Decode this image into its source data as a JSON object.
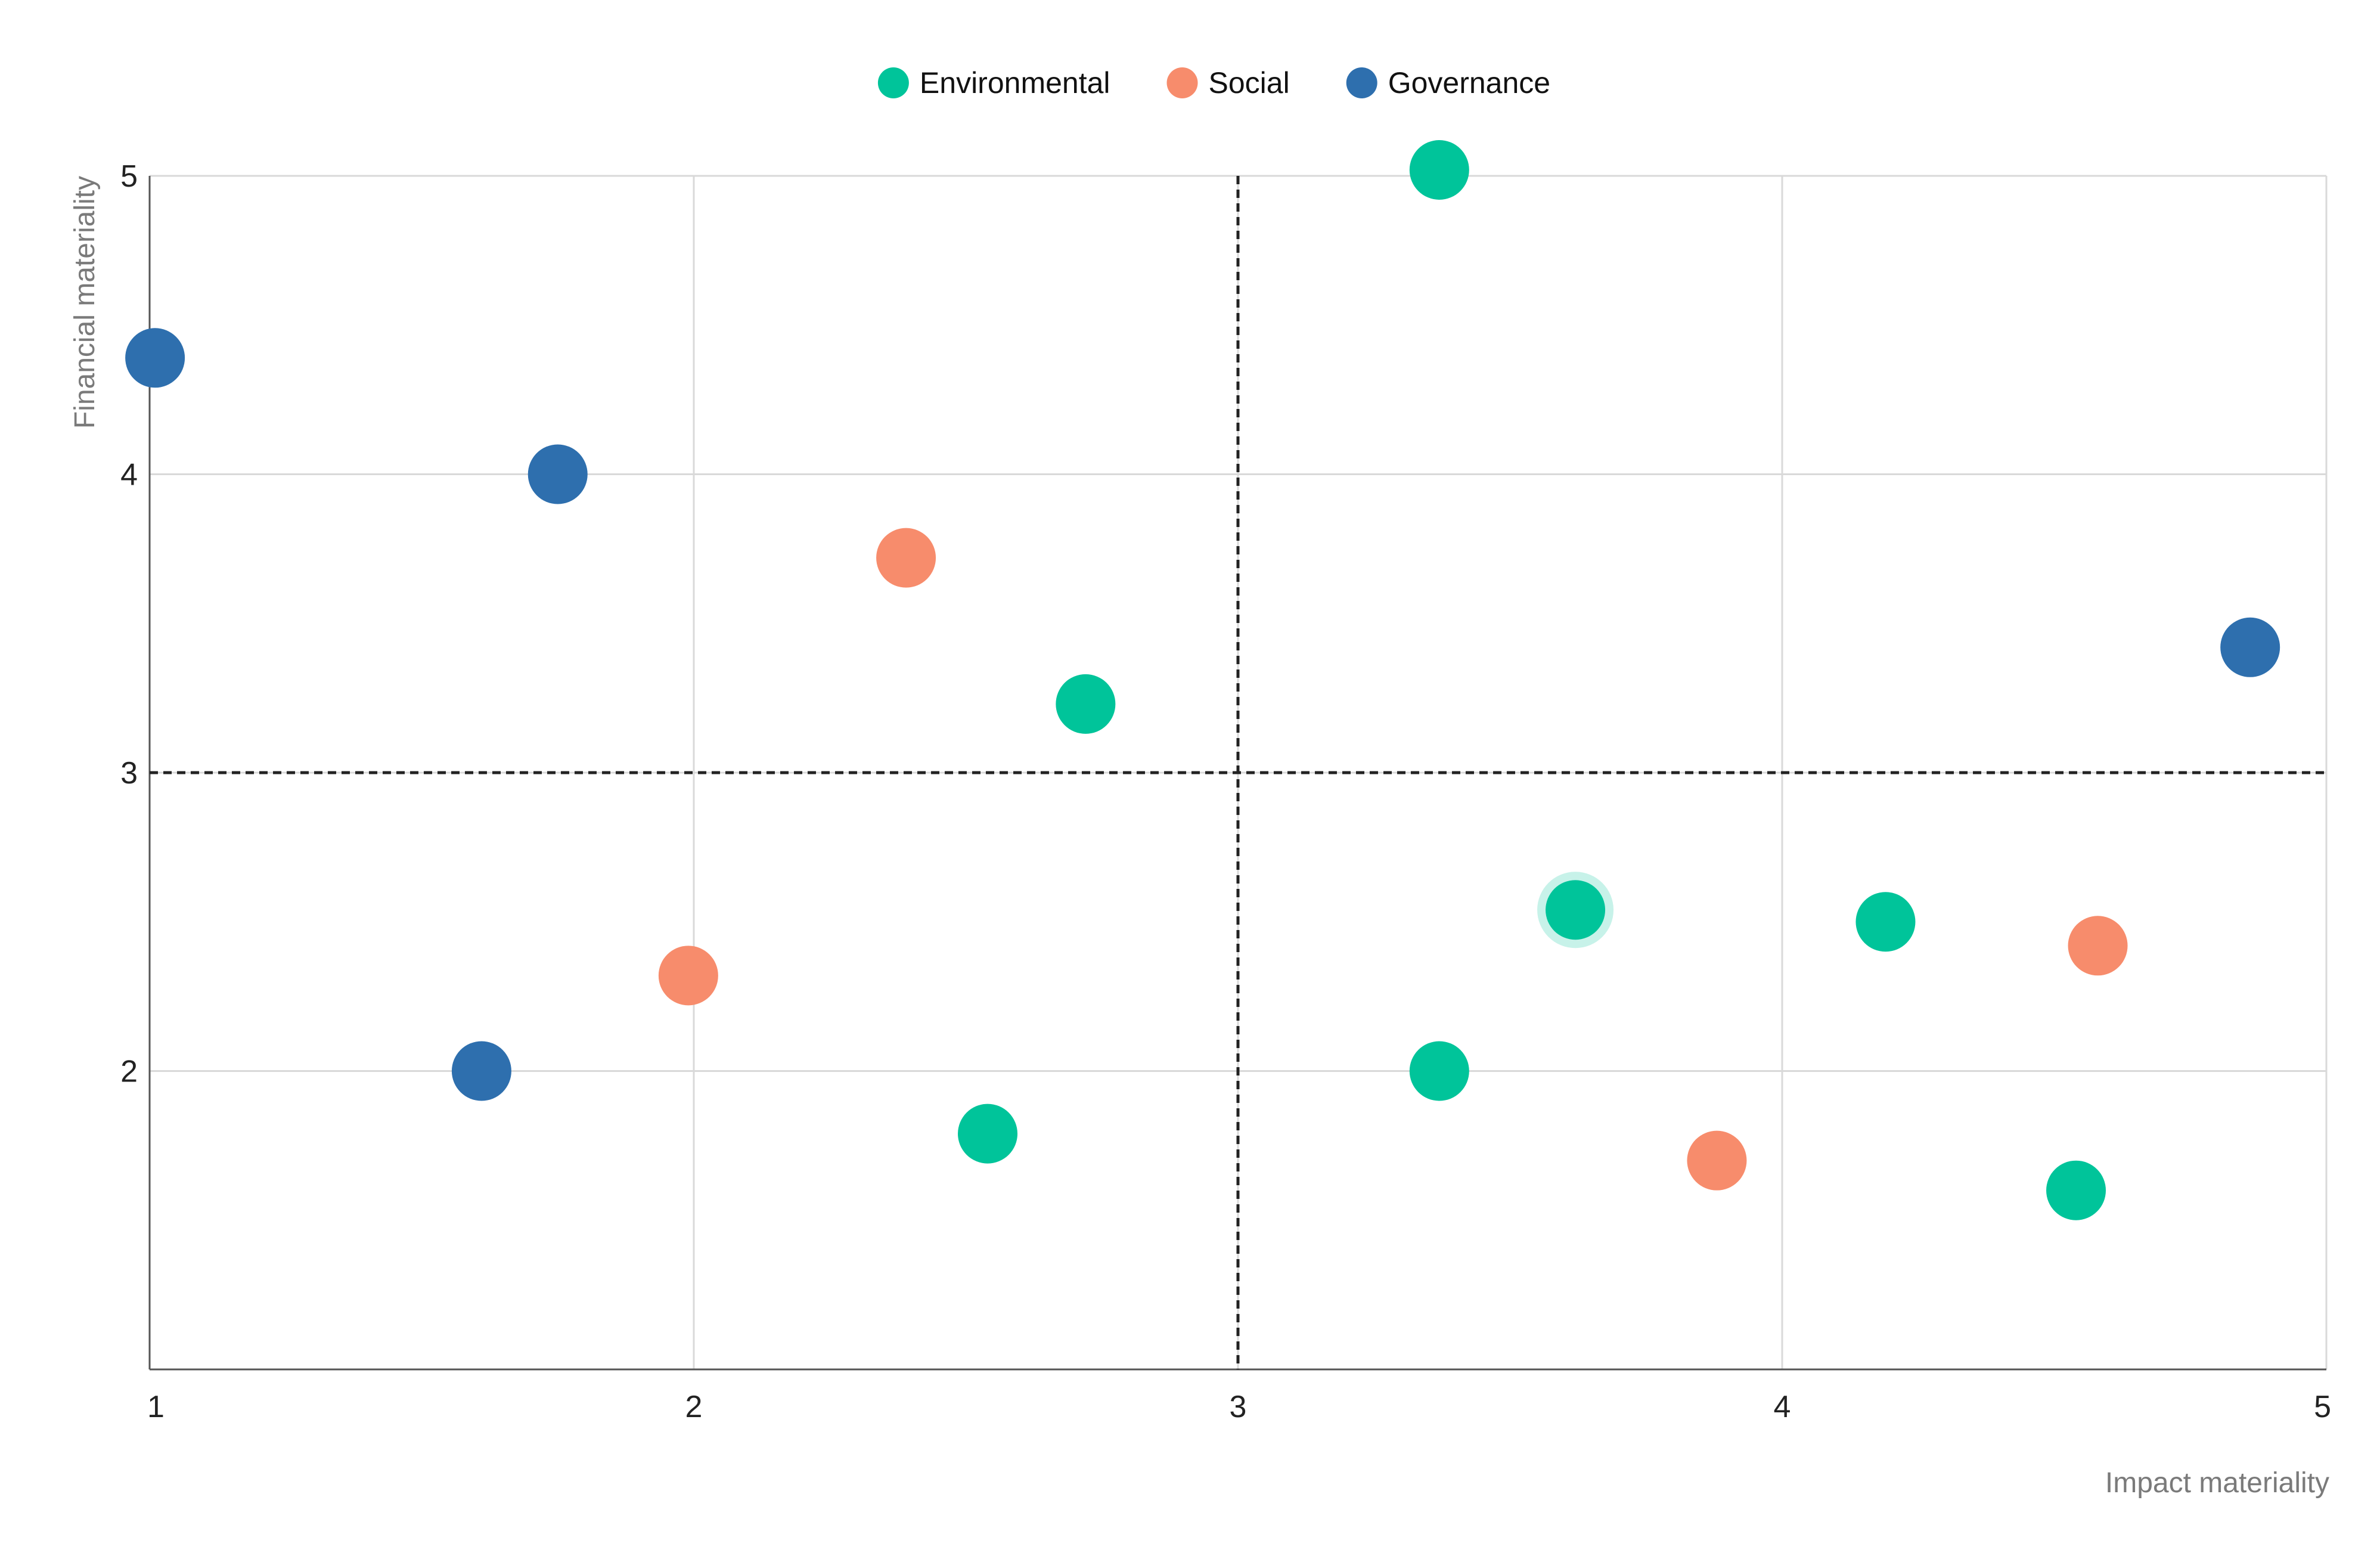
{
  "chart_data": {
    "type": "scatter",
    "title": "",
    "xlabel": "Impact materiality",
    "ylabel": "Financial materiality",
    "xlim": [
      1,
      5
    ],
    "ylim": [
      1,
      5
    ],
    "x_ticks": [
      "1",
      "2",
      "3",
      "4",
      "5"
    ],
    "y_ticks": [
      "2",
      "3",
      "4",
      "5"
    ],
    "grid": true,
    "legend_position": "top-center",
    "reference_lines": {
      "x": 3,
      "y": 3
    },
    "series": [
      {
        "name": "Environmental",
        "color": "#00c49a",
        "points": [
          {
            "x": 3.37,
            "y": 5.02
          },
          {
            "x": 2.72,
            "y": 3.23
          },
          {
            "x": 3.62,
            "y": 2.54,
            "highlighted": true
          },
          {
            "x": 4.19,
            "y": 2.5
          },
          {
            "x": 3.37,
            "y": 2.0
          },
          {
            "x": 2.54,
            "y": 1.79
          },
          {
            "x": 4.54,
            "y": 1.6
          }
        ]
      },
      {
        "name": "Social",
        "color": "#f78c6c",
        "points": [
          {
            "x": 2.39,
            "y": 3.72
          },
          {
            "x": 1.99,
            "y": 2.32
          },
          {
            "x": 3.88,
            "y": 1.7
          },
          {
            "x": 4.58,
            "y": 2.42
          }
        ]
      },
      {
        "name": "Governance",
        "color": "#2e6fae",
        "points": [
          {
            "x": 1.01,
            "y": 4.39
          },
          {
            "x": 1.75,
            "y": 4.0
          },
          {
            "x": 1.61,
            "y": 2.0
          },
          {
            "x": 4.86,
            "y": 3.42
          }
        ]
      }
    ]
  }
}
